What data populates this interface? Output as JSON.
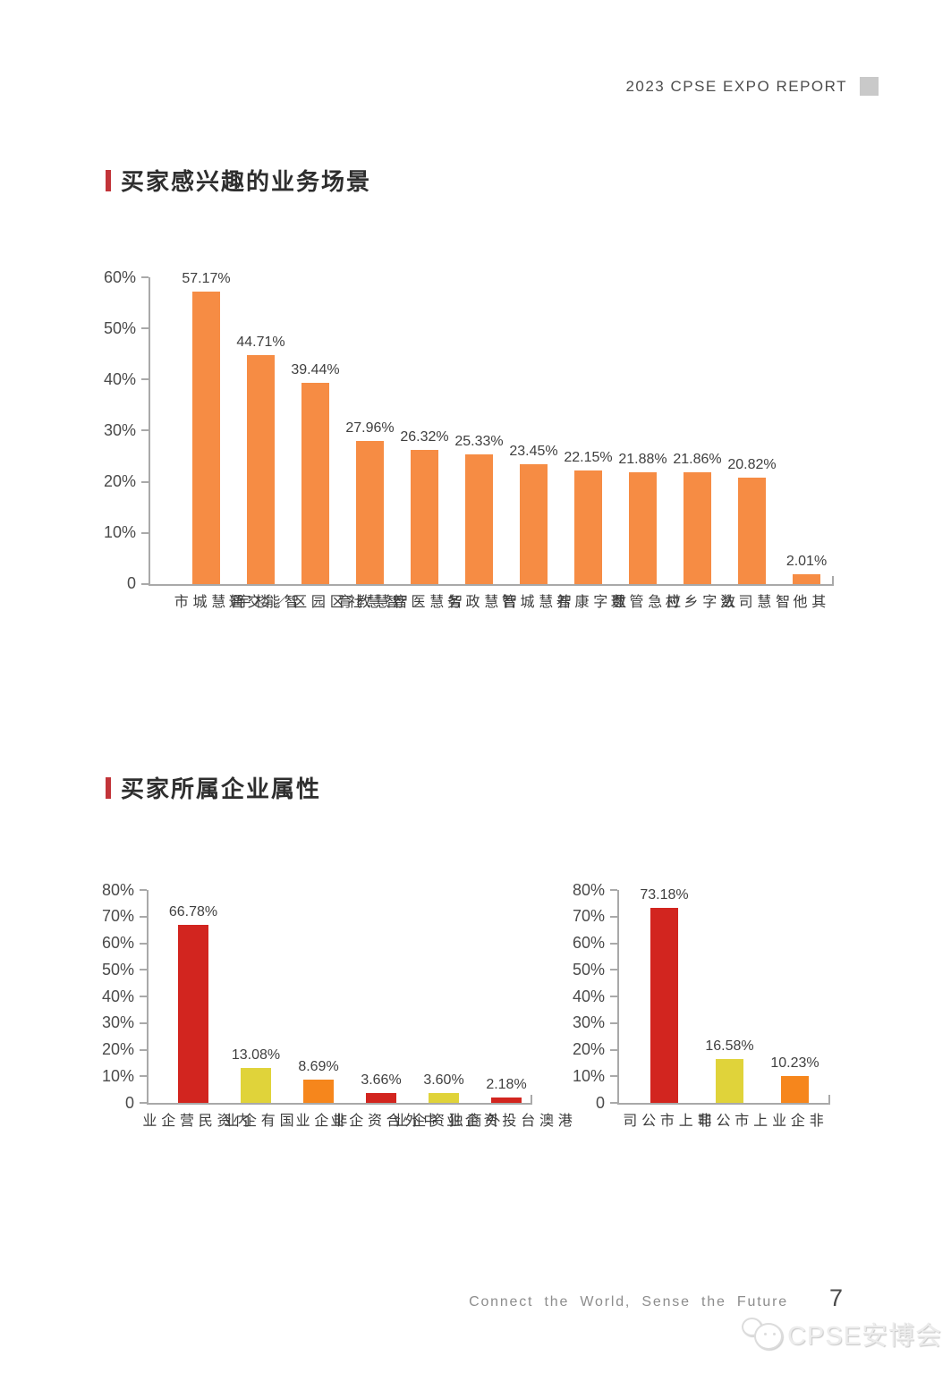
{
  "page": {
    "header": {
      "title": "2023 CPSE EXPO REPORT"
    },
    "section1_title": "买家感兴趣的业务场景",
    "section2_title": "买家所属企业属性",
    "footer": {
      "tagline": "Connect the World, Sense the Future",
      "page_number": "7",
      "watermark_text": "CPSE安博会"
    }
  },
  "colors": {
    "accent_red_marker": "#c23439",
    "bar_orange_light": "#f68c44",
    "bar_red": "#d2251f",
    "bar_yellow": "#e0d33a",
    "bar_orange": "#f6861c",
    "axis_gray": "#a9a9a9",
    "header_square_gray": "#c9c9c9"
  },
  "chart_data": [
    {
      "type": "bar",
      "title": "买家感兴趣的业务场景",
      "categories": [
        "智慧城市",
        "智能交通",
        "智慧社区\n园区／楼宇",
        "智慧教育",
        "智慧医疗",
        "智慧政务",
        "智慧城管",
        "数字康养",
        "应急管理",
        "数字乡村",
        "智慧司法",
        "其他"
      ],
      "values": [
        57.17,
        44.71,
        39.44,
        27.96,
        26.32,
        25.33,
        23.45,
        22.15,
        21.88,
        21.86,
        20.82,
        2.01
      ],
      "labels": [
        "57.17%",
        "44.71%",
        "39.44%",
        "27.96%",
        "26.32%",
        "25.33%",
        "23.45%",
        "22.15%",
        "21.88%",
        "21.86%",
        "20.82%",
        "2.01%"
      ],
      "bar_colors": [
        "#f68c44",
        "#f68c44",
        "#f68c44",
        "#f68c44",
        "#f68c44",
        "#f68c44",
        "#f68c44",
        "#f68c44",
        "#f68c44",
        "#f68c44",
        "#f68c44",
        "#f68c44"
      ],
      "ylim": [
        0,
        60
      ],
      "yticks": [
        "60%",
        "50%",
        "40%",
        "30%",
        "20%",
        "10%",
        "0"
      ],
      "grid": false,
      "legend": null
    },
    {
      "type": "bar",
      "title": "买家所属企业属性（企业类型）",
      "categories": [
        "内资民营企业",
        "国有企业",
        "非企业",
        "中外合资企业",
        "外商独资企业",
        "港澳台投资企业"
      ],
      "values": [
        66.78,
        13.08,
        8.69,
        3.66,
        3.6,
        2.18
      ],
      "labels": [
        "66.78%",
        "13.08%",
        "8.69%",
        "3.66%",
        "3.60%",
        "2.18%"
      ],
      "bar_colors": [
        "#d2251f",
        "#e0d33a",
        "#f6861c",
        "#d2251f",
        "#e0d33a",
        "#d2251f"
      ],
      "ylim": [
        0,
        80
      ],
      "yticks": [
        "80%",
        "70%",
        "60%",
        "50%",
        "40%",
        "30%",
        "20%",
        "10%",
        "0"
      ],
      "grid": false,
      "legend": null
    },
    {
      "type": "bar",
      "title": "买家所属企业属性（上市情况）",
      "categories": [
        "非上市公司",
        "上市公司",
        "非企业"
      ],
      "values": [
        73.18,
        16.58,
        10.23
      ],
      "labels": [
        "73.18%",
        "16.58%",
        "10.23%"
      ],
      "bar_colors": [
        "#d2251f",
        "#e0d33a",
        "#f6861c"
      ],
      "ylim": [
        0,
        80
      ],
      "yticks": [
        "80%",
        "70%",
        "60%",
        "50%",
        "40%",
        "30%",
        "20%",
        "10%",
        "0"
      ],
      "grid": false,
      "legend": null
    }
  ]
}
